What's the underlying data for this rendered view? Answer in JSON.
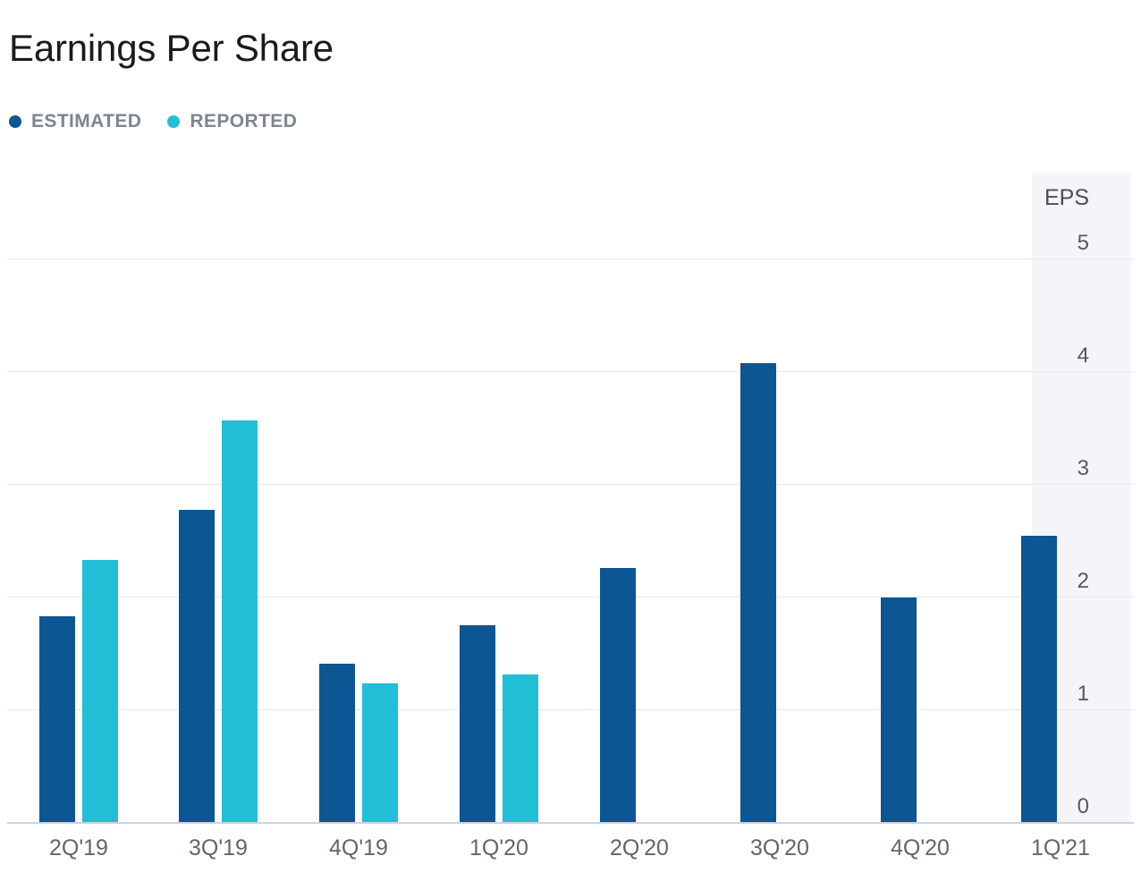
{
  "title": "Earnings Per Share",
  "legend": [
    {
      "label": "ESTIMATED",
      "color": "#0b5693"
    },
    {
      "label": "REPORTED",
      "color": "#21bfd5"
    }
  ],
  "chart_data": {
    "type": "bar",
    "title": "Earnings Per Share",
    "categories": [
      "2Q'19",
      "3Q'19",
      "4Q'19",
      "1Q'20",
      "2Q'20",
      "3Q'20",
      "4Q'20",
      "1Q'21"
    ],
    "series": [
      {
        "name": "ESTIMATED",
        "color": "#0b5693",
        "values": [
          1.83,
          2.78,
          1.41,
          1.75,
          2.26,
          4.08,
          2.0,
          2.55
        ]
      },
      {
        "name": "REPORTED",
        "color": "#21bfd5",
        "values": [
          2.33,
          3.57,
          1.24,
          1.32,
          null,
          null,
          null,
          null
        ]
      }
    ],
    "ylabel": "EPS",
    "ylim": [
      0,
      5
    ],
    "yticks": [
      0,
      1,
      2,
      3,
      4,
      5
    ],
    "grid": true,
    "legend_position": "top-left",
    "axis_side": "right"
  },
  "colors": {
    "estimated": "#0b5693",
    "reported": "#21bfd5",
    "gridline": "#e8e8e8",
    "baseline": "#c9d4e6",
    "axis_panel": "#f5f4f8",
    "title_text": "#191b1e",
    "legend_text": "#7d868f",
    "tick_text": "#54585c",
    "xlabel_text": "#5e6770"
  }
}
